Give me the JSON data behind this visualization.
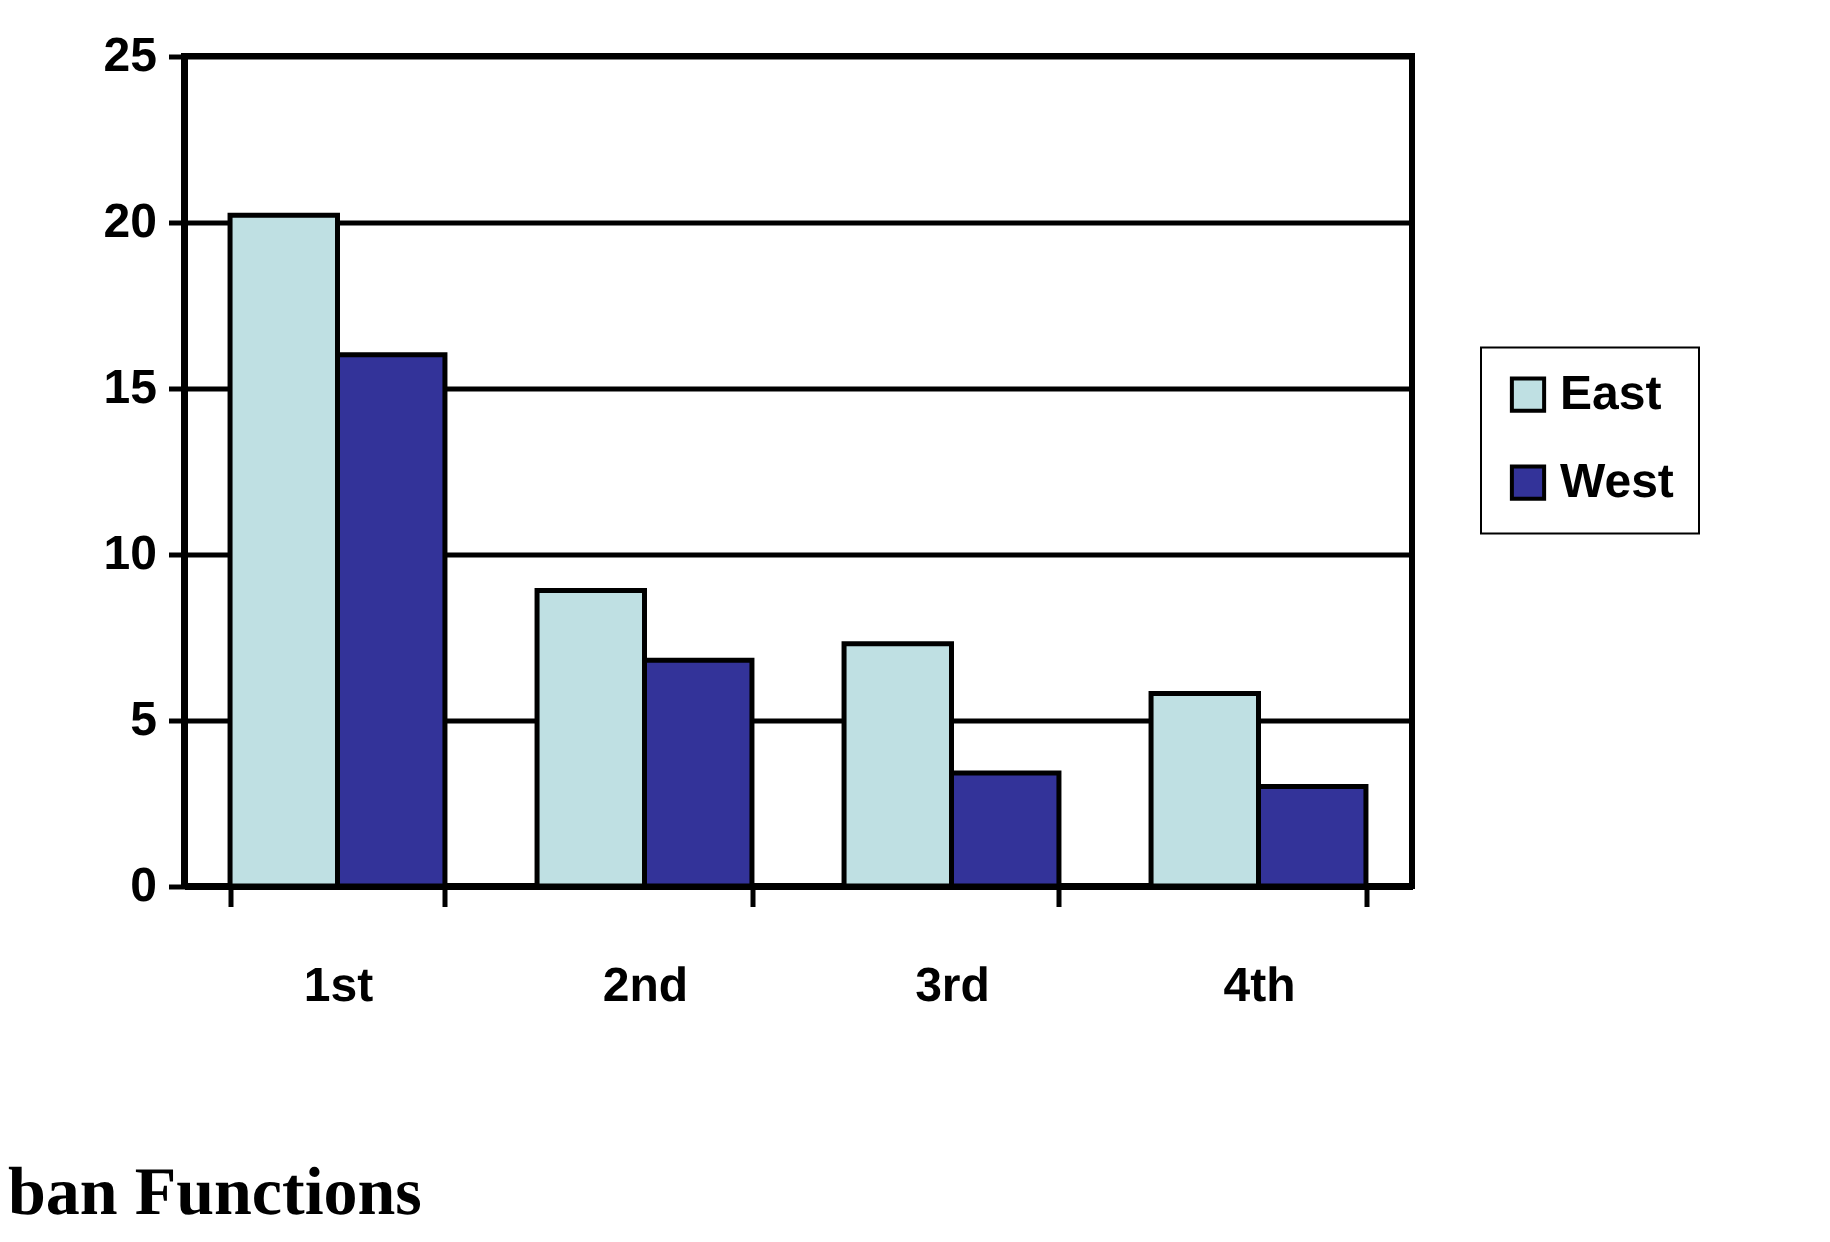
{
  "chart_data": {
    "type": "bar",
    "categories": [
      "1st",
      "2nd",
      "3rd",
      "4th"
    ],
    "series": [
      {
        "name": "East",
        "color": "#bfe0e3",
        "values": [
          20.2,
          8.9,
          7.3,
          5.8
        ]
      },
      {
        "name": "West",
        "color": "#333399",
        "values": [
          16.0,
          6.8,
          3.4,
          3.0
        ]
      }
    ],
    "ylim": [
      0,
      25
    ],
    "yticks": [
      0,
      5,
      10,
      15,
      20,
      25
    ],
    "grid": "y",
    "legend": "right",
    "annotations": [
      "ban Functions"
    ]
  }
}
